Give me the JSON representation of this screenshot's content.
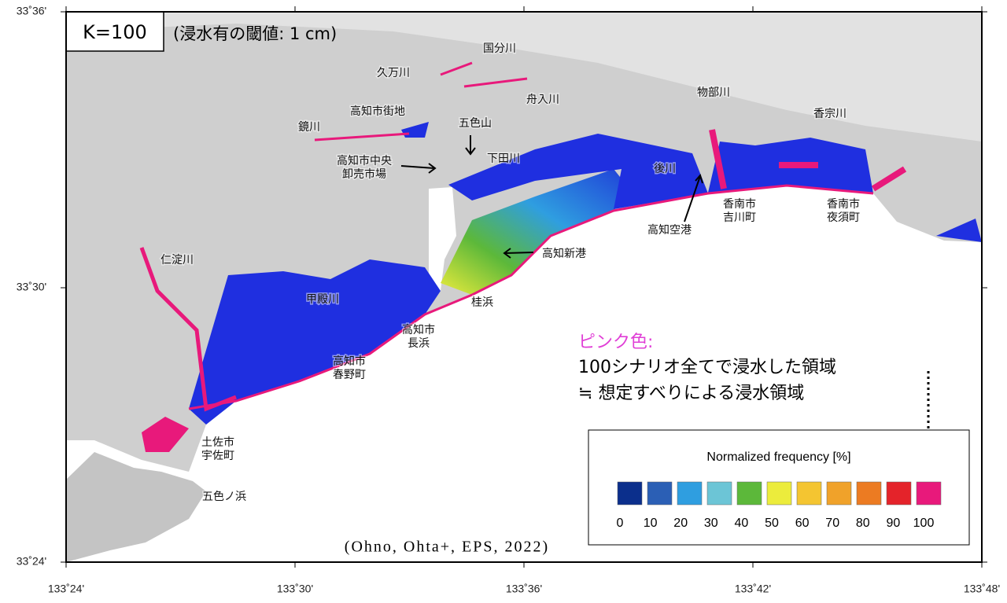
{
  "title": {
    "k": "K=100",
    "threshold": "(浸水有の閾値: 1 cm)"
  },
  "axes": {
    "lat": [
      "33˚36'",
      "33˚30'",
      "33˚24'"
    ],
    "lon": [
      "133˚24'",
      "133˚30'",
      "133˚36'",
      "133˚42'",
      "133˚48'"
    ]
  },
  "places": [
    {
      "lines": [
        "国分川"
      ]
    },
    {
      "lines": [
        "久万川"
      ]
    },
    {
      "lines": [
        "舟入川"
      ]
    },
    {
      "lines": [
        "高知市街地"
      ]
    },
    {
      "lines": [
        "鏡川"
      ]
    },
    {
      "lines": [
        "五色山"
      ]
    },
    {
      "lines": [
        "高知市中央",
        "卸売市場"
      ]
    },
    {
      "lines": [
        "下田川"
      ]
    },
    {
      "lines": [
        "物部川"
      ]
    },
    {
      "lines": [
        "香宗川"
      ]
    },
    {
      "lines": [
        "後川"
      ]
    },
    {
      "lines": [
        "香南市",
        "吉川町"
      ]
    },
    {
      "lines": [
        "香南市",
        "夜須町"
      ]
    },
    {
      "lines": [
        "高知空港"
      ]
    },
    {
      "lines": [
        "高知新港"
      ]
    },
    {
      "lines": [
        "仁淀川"
      ]
    },
    {
      "lines": [
        "甲殿川"
      ]
    },
    {
      "lines": [
        "桂浜"
      ]
    },
    {
      "lines": [
        "高知市",
        "長浜"
      ]
    },
    {
      "lines": [
        "高知市",
        "春野町"
      ]
    },
    {
      "lines": [
        "土佐市",
        "宇佐町"
      ]
    },
    {
      "lines": [
        "五色ノ浜"
      ]
    }
  ],
  "note": {
    "heading": "ピンク色:",
    "lines": [
      "100シナリオ全てで浸水した領域",
      "≒ 想定すべりによる浸水領域"
    ]
  },
  "legend": {
    "title": "Normalized frequency [%]",
    "ticks": [
      0,
      10,
      20,
      30,
      40,
      50,
      60,
      70,
      80,
      90,
      100
    ],
    "colors": [
      "#0b2f8c",
      "#2b5fb5",
      "#2f9ee0",
      "#6cc5d6",
      "#5cb83a",
      "#ecec3c",
      "#f4c531",
      "#f0a22a",
      "#ec7b22",
      "#e4232a",
      "#e8197b"
    ]
  },
  "credit": "(Ohno, Ohta+, EPS, 2022)"
}
